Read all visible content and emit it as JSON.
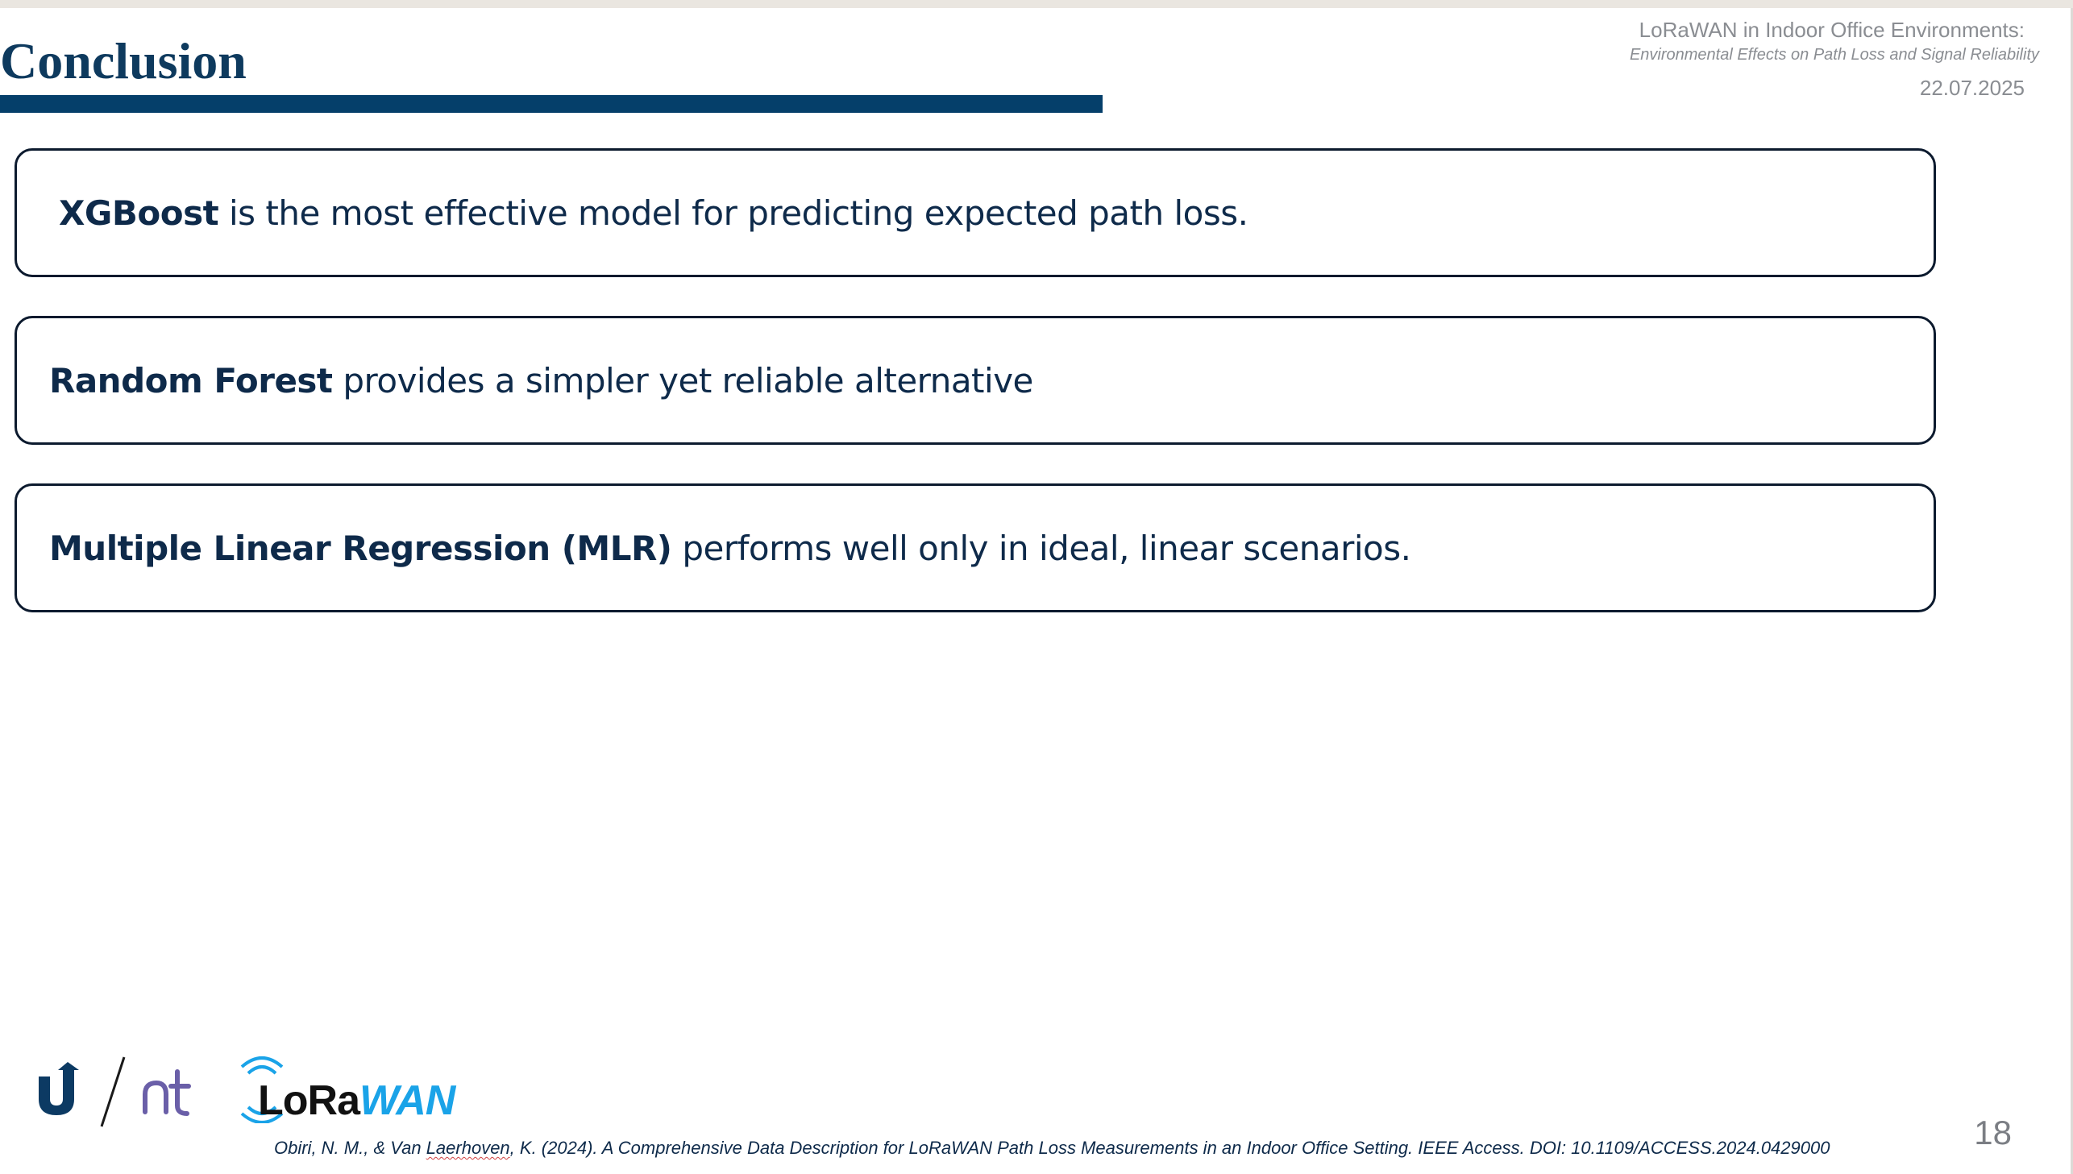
{
  "slide": {
    "title": "Conclusion",
    "page_number": "18",
    "colors": {
      "title": "#0e3a5e",
      "accent_bar": "#053f6a",
      "card_border": "#0c1a2e",
      "header_grey": "#8a8d92"
    }
  },
  "header": {
    "title": "LoRaWAN in Indoor Office Environments:",
    "subtitle": "Environmental Effects on Path Loss and Signal Reliability",
    "date": "22.07.2025"
  },
  "cards": [
    {
      "bold": "XGBoost",
      "text": " is the most effective model for predicting expected path loss."
    },
    {
      "bold": "Random Forest",
      "text": " provides a simpler yet reliable alternative"
    },
    {
      "bold": "Multiple Linear Regression (MLR)",
      "text": " performs well only in ideal, linear scenarios."
    }
  ],
  "logos": {
    "lorawan_part1": "LoRa",
    "lorawan_part2": "WAN",
    "icons": [
      "university-logo-icon",
      "nt-logo-icon",
      "lorawan-logo-icon"
    ]
  },
  "footer": {
    "citation_before": "Obiri, N. M., & Van ",
    "citation_underlined": "Laerhoven",
    "citation_after": ", K. (2024). A Comprehensive Data Description for LoRaWAN Path Loss Measurements in an Indoor Office Setting. IEEE Access. DOI: 10.1109/ACCESS.2024.0429000"
  }
}
